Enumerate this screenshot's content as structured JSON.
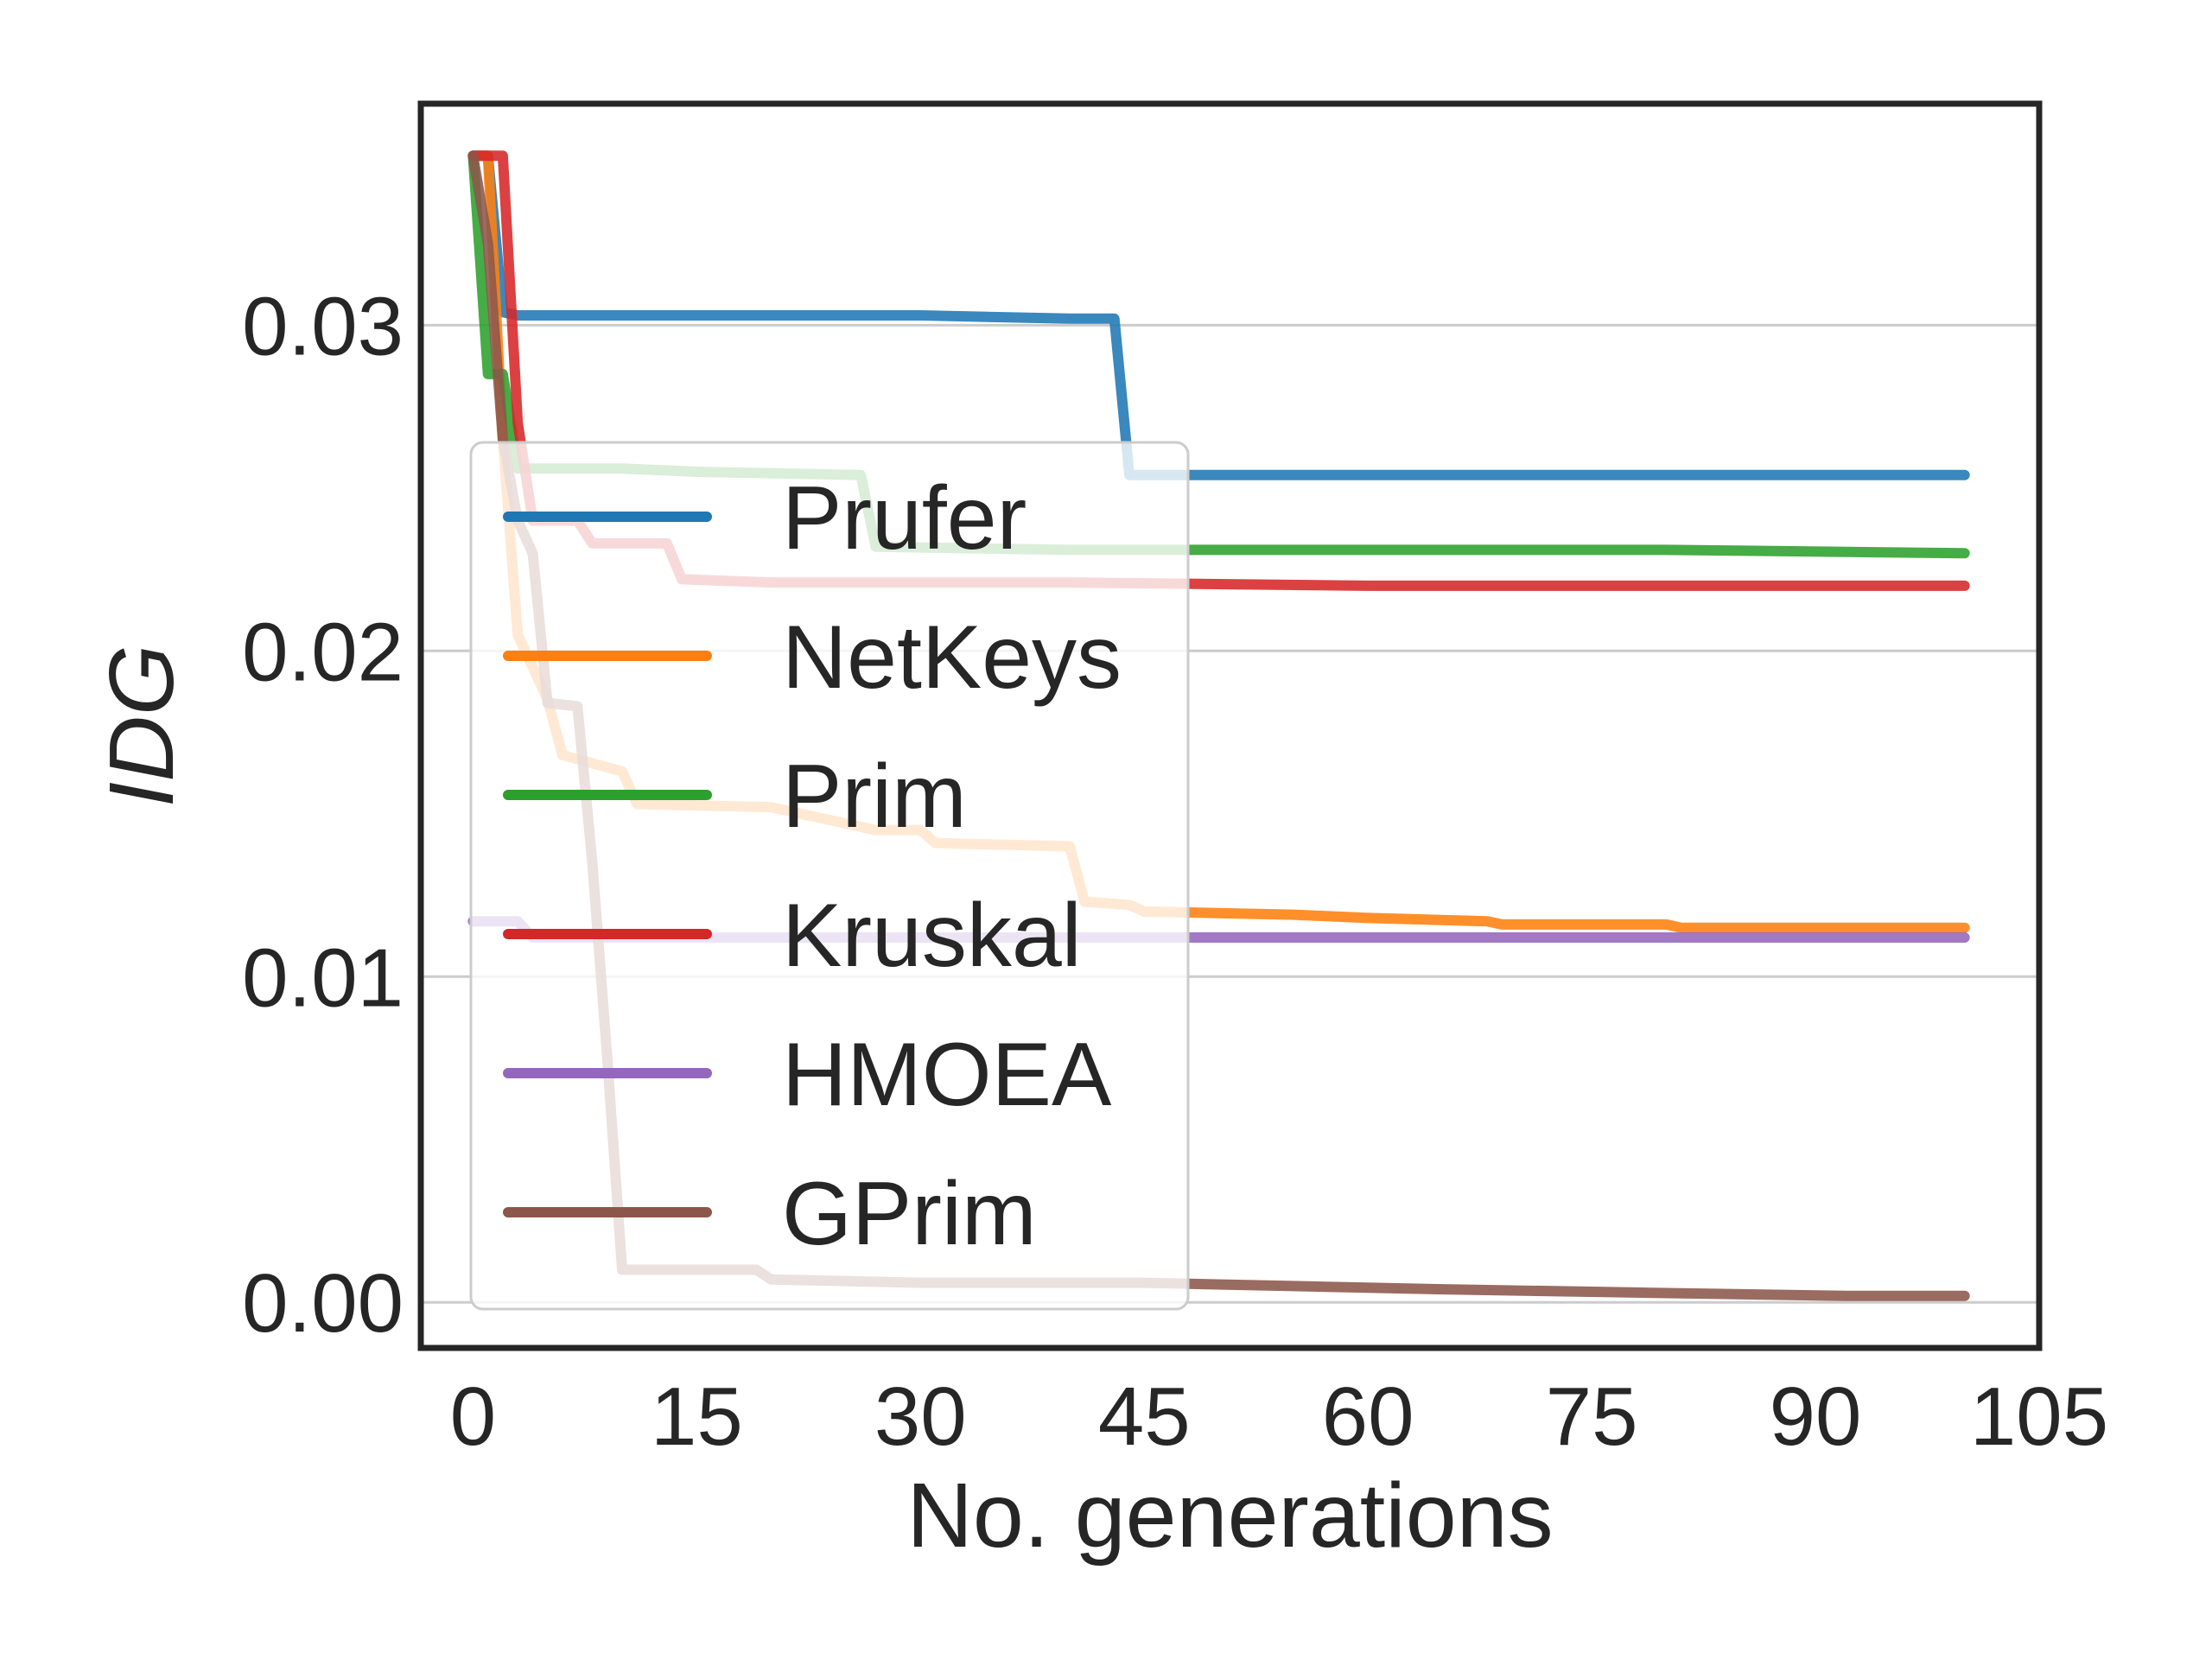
{
  "chart_data": {
    "type": "line",
    "xlabel": "No. generations",
    "ylabel": "IDG",
    "xlim": [
      -3.5,
      105
    ],
    "ylim": [
      -0.0014,
      0.0368
    ],
    "xticks": [
      0,
      15,
      30,
      45,
      60,
      75,
      90,
      105
    ],
    "xtick_labels": [
      "0",
      "15",
      "30",
      "45",
      "60",
      "75",
      "90",
      "105"
    ],
    "yticks": [
      0.0,
      0.01,
      0.02,
      0.03
    ],
    "ytick_labels": [
      "0.00",
      "0.01",
      "0.02",
      "0.03"
    ],
    "grid": "horizontal",
    "legend_position": "center-left",
    "series": [
      {
        "name": "Prufer",
        "color": "#1f77b4",
        "x": [
          0,
          1,
          2,
          3,
          10,
          20,
          30,
          40,
          43,
          44,
          45,
          60,
          80,
          100
        ],
        "y": [
          0.0352,
          0.0352,
          0.0304,
          0.0303,
          0.0303,
          0.0303,
          0.0303,
          0.0302,
          0.0302,
          0.0254,
          0.0254,
          0.0254,
          0.0254,
          0.0254
        ]
      },
      {
        "name": "NetKeys",
        "color": "#ff7f0e",
        "x": [
          0,
          1,
          2,
          3,
          4,
          5,
          6,
          10,
          11,
          20,
          22,
          27,
          30,
          31,
          40,
          41,
          44,
          45,
          55,
          60,
          68,
          69,
          80,
          81,
          100
        ],
        "y": [
          0.0352,
          0.0352,
          0.0265,
          0.0205,
          0.0195,
          0.0185,
          0.0168,
          0.0163,
          0.0153,
          0.0152,
          0.015,
          0.0145,
          0.0145,
          0.0141,
          0.014,
          0.0123,
          0.0122,
          0.012,
          0.0119,
          0.0118,
          0.0117,
          0.0116,
          0.0116,
          0.0115,
          0.0115
        ]
      },
      {
        "name": "Prim",
        "color": "#2ca02c",
        "x": [
          0,
          1,
          2,
          3,
          10,
          15,
          26,
          27,
          40,
          60,
          80,
          100
        ],
        "y": [
          0.0352,
          0.0285,
          0.0285,
          0.0256,
          0.0256,
          0.0255,
          0.0254,
          0.0232,
          0.0231,
          0.0231,
          0.0231,
          0.023
        ]
      },
      {
        "name": "Kruskal",
        "color": "#d62728",
        "x": [
          0,
          1,
          2,
          3,
          4,
          7,
          8,
          13,
          14,
          20,
          40,
          60,
          80,
          100
        ],
        "y": [
          0.0352,
          0.0352,
          0.0352,
          0.027,
          0.024,
          0.024,
          0.0233,
          0.0233,
          0.0222,
          0.0221,
          0.0221,
          0.022,
          0.022,
          0.022
        ]
      },
      {
        "name": "HMOEA",
        "color": "#9467bd",
        "x": [
          0,
          3,
          4,
          20,
          40,
          60,
          80,
          100
        ],
        "y": [
          0.0117,
          0.0117,
          0.0112,
          0.0112,
          0.0112,
          0.0112,
          0.0112,
          0.0112
        ]
      },
      {
        "name": "GPrim",
        "color": "#8c564b",
        "x": [
          0,
          1,
          2,
          3,
          4,
          5,
          7,
          8,
          9,
          10,
          19,
          20,
          30,
          45,
          55,
          65,
          78,
          92,
          100
        ],
        "y": [
          0.0352,
          0.0325,
          0.0265,
          0.024,
          0.023,
          0.0184,
          0.0183,
          0.0135,
          0.0075,
          0.001,
          0.001,
          0.0007,
          0.0006,
          0.0006,
          0.0005,
          0.0004,
          0.0003,
          0.0002,
          0.0002
        ]
      }
    ]
  }
}
